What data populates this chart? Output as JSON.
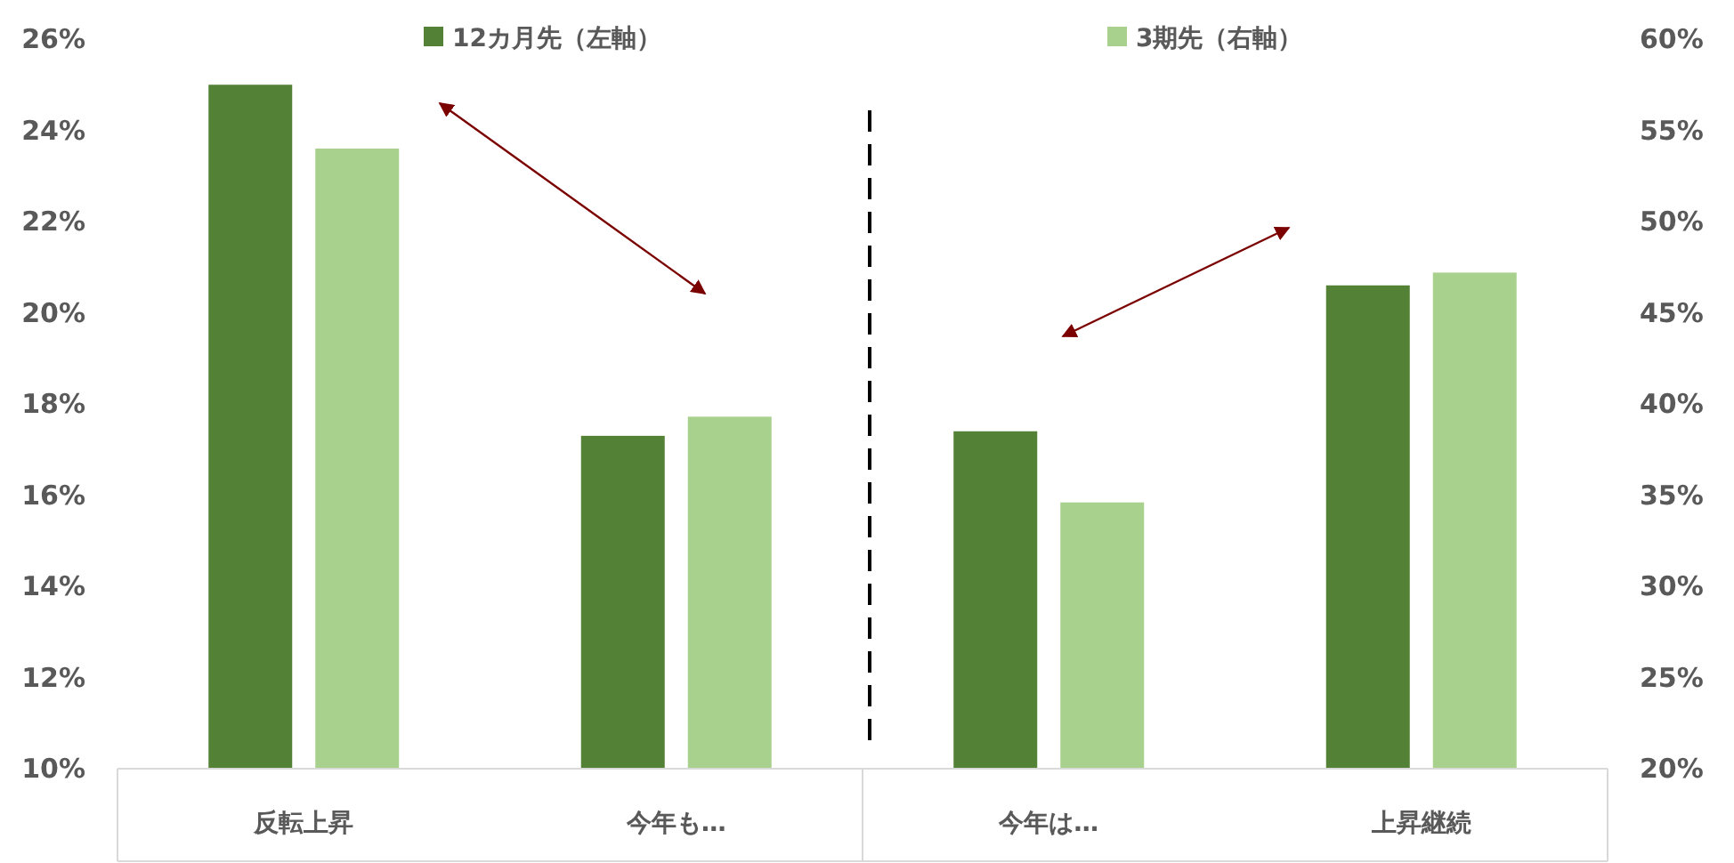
{
  "chart_data": {
    "type": "bar",
    "categories": [
      "反転上昇",
      "今年も…",
      "今年は…",
      "上昇継続"
    ],
    "series": [
      {
        "name": "12カ月先（左軸）",
        "color": "#538135",
        "values": [
          25.0,
          17.3,
          17.4,
          20.6
        ]
      },
      {
        "name": "3期先（右軸）",
        "color": "#a9d18e",
        "values": [
          54.0,
          39.3,
          34.6,
          47.2
        ],
        "axis": "y2"
      }
    ],
    "ylim": [
      10,
      26
    ],
    "yticks": [
      {
        "value": 10,
        "label": "10%"
      },
      {
        "value": 12,
        "label": "12%"
      },
      {
        "value": 14,
        "label": "14%"
      },
      {
        "value": 16,
        "label": "16%"
      },
      {
        "value": 18,
        "label": "18%"
      },
      {
        "value": 20,
        "label": "20%"
      },
      {
        "value": 22,
        "label": "22%"
      },
      {
        "value": 24,
        "label": "24%"
      },
      {
        "value": 26,
        "label": "26%"
      }
    ],
    "y2lim": [
      20,
      60
    ],
    "y2ticks": [
      {
        "value": 20,
        "label": "20%"
      },
      {
        "value": 25,
        "label": "25%"
      },
      {
        "value": 30,
        "label": "30%"
      },
      {
        "value": 35,
        "label": "35%"
      },
      {
        "value": 40,
        "label": "40%"
      },
      {
        "value": 45,
        "label": "45%"
      },
      {
        "value": 50,
        "label": "50%"
      },
      {
        "value": 55,
        "label": "55%"
      },
      {
        "value": 60,
        "label": "60%"
      }
    ],
    "legend": "top",
    "grid": false
  }
}
